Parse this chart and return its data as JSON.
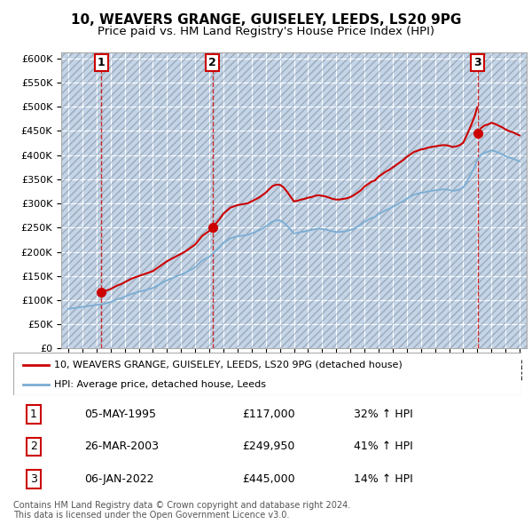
{
  "title": "10, WEAVERS GRANGE, GUISELEY, LEEDS, LS20 9PG",
  "subtitle": "Price paid vs. HM Land Registry's House Price Index (HPI)",
  "ylim": [
    0,
    612500
  ],
  "yticks": [
    0,
    50000,
    100000,
    150000,
    200000,
    250000,
    300000,
    350000,
    400000,
    450000,
    500000,
    550000,
    600000
  ],
  "ytick_labels": [
    "£0",
    "£50K",
    "£100K",
    "£150K",
    "£200K",
    "£250K",
    "£300K",
    "£350K",
    "£400K",
    "£450K",
    "£500K",
    "£550K",
    "£600K"
  ],
  "xlim": [
    1992.5,
    2025.5
  ],
  "xticks": [
    1993,
    1994,
    1995,
    1996,
    1997,
    1998,
    1999,
    2000,
    2001,
    2002,
    2003,
    2004,
    2005,
    2006,
    2007,
    2008,
    2009,
    2010,
    2011,
    2012,
    2013,
    2014,
    2015,
    2016,
    2017,
    2018,
    2019,
    2020,
    2021,
    2022,
    2023,
    2024,
    2025
  ],
  "plot_bg_color": "#dce6f1",
  "hatch_bg_color": "#c5d5e8",
  "grid_color": "#ffffff",
  "sale_color": "#cc0000",
  "hpi_color": "#7aadd4",
  "sale_year_floats": [
    1995.35,
    2003.23,
    2022.02
  ],
  "sale_prices": [
    117000,
    249950,
    445000
  ],
  "sale_labels": [
    "1",
    "2",
    "3"
  ],
  "legend_sale_label": "10, WEAVERS GRANGE, GUISELEY, LEEDS, LS20 9PG (detached house)",
  "legend_hpi_label": "HPI: Average price, detached house, Leeds",
  "table_rows": [
    [
      "1",
      "05-MAY-1995",
      "£117,000",
      "32% ↑ HPI"
    ],
    [
      "2",
      "26-MAR-2003",
      "£249,950",
      "41% ↑ HPI"
    ],
    [
      "3",
      "06-JAN-2022",
      "£445,000",
      "14% ↑ HPI"
    ]
  ],
  "footnote": "Contains HM Land Registry data © Crown copyright and database right 2024.\nThis data is licensed under the Open Government Licence v3.0.",
  "hpi_years": [
    1993.0,
    1993.25,
    1993.5,
    1993.75,
    1994.0,
    1994.25,
    1994.5,
    1994.75,
    1995.0,
    1995.25,
    1995.5,
    1995.75,
    1996.0,
    1996.25,
    1996.5,
    1996.75,
    1997.0,
    1997.25,
    1997.5,
    1997.75,
    1998.0,
    1998.25,
    1998.5,
    1998.75,
    1999.0,
    1999.25,
    1999.5,
    1999.75,
    2000.0,
    2000.25,
    2000.5,
    2000.75,
    2001.0,
    2001.25,
    2001.5,
    2001.75,
    2002.0,
    2002.25,
    2002.5,
    2002.75,
    2003.0,
    2003.25,
    2003.5,
    2003.75,
    2004.0,
    2004.25,
    2004.5,
    2004.75,
    2005.0,
    2005.25,
    2005.5,
    2005.75,
    2006.0,
    2006.25,
    2006.5,
    2006.75,
    2007.0,
    2007.25,
    2007.5,
    2007.75,
    2008.0,
    2008.25,
    2008.5,
    2008.75,
    2009.0,
    2009.25,
    2009.5,
    2009.75,
    2010.0,
    2010.25,
    2010.5,
    2010.75,
    2011.0,
    2011.25,
    2011.5,
    2011.75,
    2012.0,
    2012.25,
    2012.5,
    2012.75,
    2013.0,
    2013.25,
    2013.5,
    2013.75,
    2014.0,
    2014.25,
    2014.5,
    2014.75,
    2015.0,
    2015.25,
    2015.5,
    2015.75,
    2016.0,
    2016.25,
    2016.5,
    2016.75,
    2017.0,
    2017.25,
    2017.5,
    2017.75,
    2018.0,
    2018.25,
    2018.5,
    2018.75,
    2019.0,
    2019.25,
    2019.5,
    2019.75,
    2020.0,
    2020.25,
    2020.5,
    2020.75,
    2021.0,
    2021.25,
    2021.5,
    2021.75,
    2022.0,
    2022.25,
    2022.5,
    2022.75,
    2023.0,
    2023.25,
    2023.5,
    2023.75,
    2024.0,
    2024.25,
    2024.5,
    2024.75,
    2025.0
  ],
  "hpi_values": [
    82000,
    83000,
    84000,
    85000,
    86000,
    87000,
    88000,
    89000,
    90000,
    91000,
    92000,
    94000,
    96000,
    99000,
    102000,
    104000,
    107000,
    110000,
    113000,
    115000,
    117000,
    119000,
    121000,
    123000,
    125000,
    129000,
    133000,
    137000,
    141000,
    144000,
    147000,
    150000,
    153000,
    156000,
    160000,
    164000,
    168000,
    175000,
    182000,
    186000,
    190000,
    196000,
    203000,
    210000,
    218000,
    223000,
    228000,
    230000,
    232000,
    233000,
    234000,
    235000,
    238000,
    241000,
    244000,
    248000,
    252000,
    258000,
    263000,
    265000,
    265000,
    261000,
    254000,
    246000,
    238000,
    239000,
    241000,
    242000,
    244000,
    245000,
    247000,
    248000,
    247000,
    246000,
    244000,
    242000,
    241000,
    241000,
    242000,
    243000,
    245000,
    248000,
    252000,
    256000,
    262000,
    266000,
    270000,
    272000,
    278000,
    282000,
    286000,
    289000,
    293000,
    297000,
    301000,
    305000,
    310000,
    314000,
    318000,
    320000,
    322000,
    323000,
    325000,
    326000,
    327000,
    328000,
    329000,
    329000,
    328000,
    326000,
    327000,
    329000,
    333000,
    345000,
    358000,
    372000,
    390000,
    400000,
    405000,
    407000,
    410000,
    408000,
    405000,
    402000,
    398000,
    395000,
    393000,
    390000,
    387000
  ]
}
